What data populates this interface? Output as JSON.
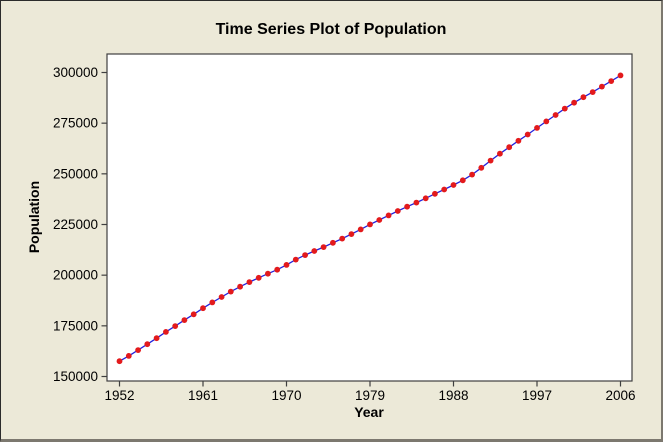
{
  "chart_data": {
    "type": "line",
    "title": "Time Series Plot of Population",
    "xlabel": "Year",
    "ylabel": "Population",
    "legend": null,
    "grid": false,
    "marker": "circle",
    "xlim": [
      1952,
      2006
    ],
    "ylim": [
      150000,
      300000
    ],
    "x_ticks": [
      1952,
      1961,
      1970,
      1979,
      1988,
      1997,
      2006
    ],
    "y_ticks": [
      150000,
      175000,
      200000,
      225000,
      250000,
      275000,
      300000
    ],
    "x": [
      1952,
      1953,
      1954,
      1955,
      1956,
      1957,
      1958,
      1959,
      1960,
      1961,
      1962,
      1963,
      1964,
      1965,
      1966,
      1967,
      1968,
      1969,
      1970,
      1971,
      1972,
      1973,
      1974,
      1975,
      1976,
      1977,
      1978,
      1979,
      1980,
      1981,
      1982,
      1983,
      1984,
      1985,
      1986,
      1987,
      1988,
      1989,
      1990,
      1991,
      1992,
      1993,
      1994,
      1995,
      1996,
      1997,
      1998,
      1999,
      2000,
      2001,
      2002,
      2003,
      2004,
      2005,
      2006
    ],
    "series": [
      {
        "name": "Population",
        "values": [
          157553,
          160184,
          163026,
          165931,
          168903,
          171984,
          174882,
          177830,
          180671,
          183691,
          186538,
          189242,
          191889,
          194303,
          196560,
          198712,
          200706,
          202677,
          205052,
          207661,
          209896,
          211909,
          213854,
          215973,
          218035,
          220239,
          222585,
          225055,
          227225,
          229466,
          231664,
          233792,
          235825,
          237924,
          240133,
          242289,
          244499,
          246819,
          249623,
          252981,
          256514,
          259919,
          263126,
          266278,
          269394,
          272657,
          275854,
          279040,
          282172,
          285082,
          287804,
          290326,
          293046,
          295753,
          298593
        ]
      }
    ],
    "colors": {
      "background": "#ECE9D8",
      "plot_background": "#FFFFFF",
      "frame": "#3F3F3F",
      "line": "#2222DD",
      "marker": "#E31A1C",
      "text": "#000000"
    }
  }
}
